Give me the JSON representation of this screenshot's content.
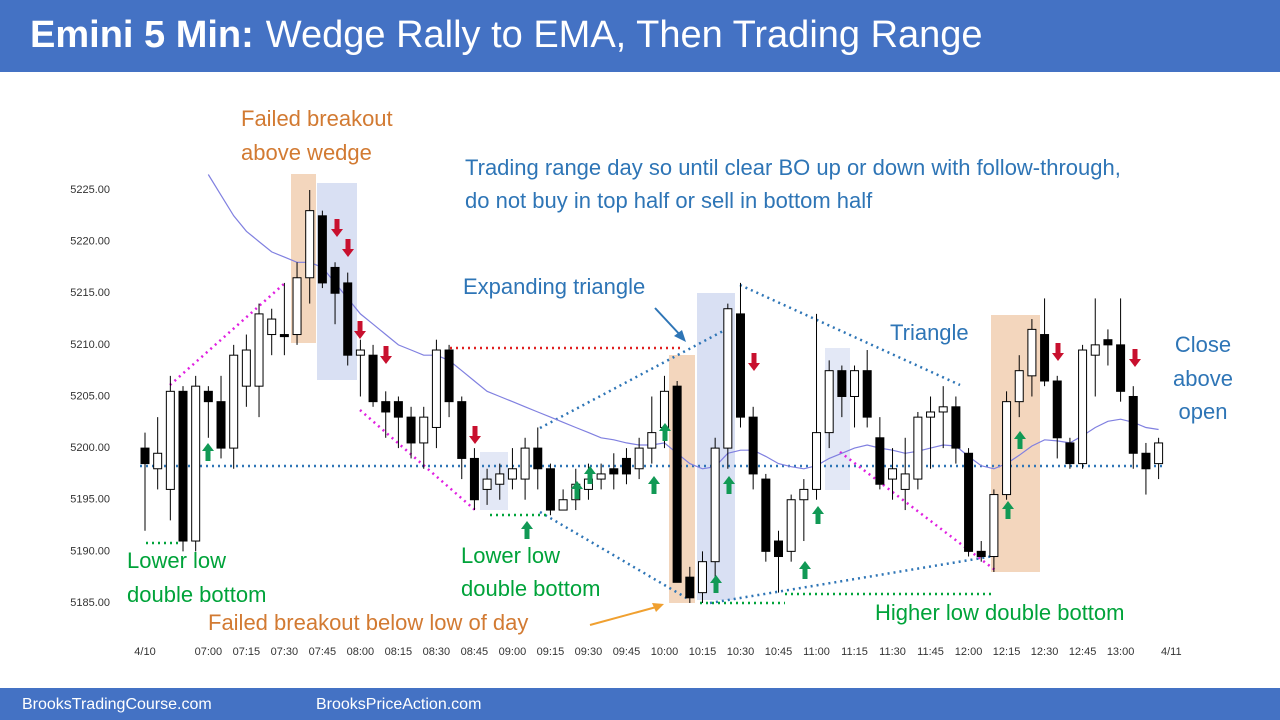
{
  "chart_data": {
    "type": "candlestick",
    "title_lead": "Emini 5 Min:",
    "title": "Wedge Rally to EMA, Then Trading Range",
    "categories": [
      "4/10",
      null,
      null,
      null,
      null,
      "07:00",
      null,
      null,
      "07:15",
      null,
      null,
      "07:30",
      null,
      null,
      "07:45",
      null,
      null,
      "08:00",
      null,
      null,
      "08:15",
      null,
      null,
      "08:30",
      null,
      null,
      "08:45",
      null,
      null,
      "09:00",
      null,
      null,
      "09:15",
      null,
      null,
      "09:30",
      null,
      null,
      "09:45",
      null,
      null,
      "10:00",
      null,
      null,
      "10:15",
      null,
      null,
      "10:30",
      null,
      null,
      "10:45",
      null,
      null,
      "11:00",
      null,
      null,
      "11:15",
      null,
      null,
      "11:30",
      null,
      null,
      "11:45",
      null,
      null,
      "12:00",
      null,
      null,
      "12:15",
      null,
      null,
      "12:30",
      null,
      null,
      "12:45",
      null,
      null,
      "13:00",
      null,
      null,
      null,
      "4/11"
    ],
    "open": [
      5200,
      5198,
      5196,
      5205.5,
      5191,
      5205.5,
      5204.5,
      5200,
      5206,
      5206,
      5211,
      5211,
      5211,
      5216.5,
      5222.5,
      5217.5,
      5216,
      5209,
      5209,
      5204.5,
      5204.5,
      5203,
      5200.5,
      5202,
      5209.5,
      5204.5,
      5199,
      5196,
      5196.5,
      5197,
      5197,
      5200,
      5198,
      5194,
      5195,
      5196,
      5197,
      5198,
      5199,
      5198,
      5200,
      5202,
      5206,
      5187.5,
      5186,
      5189,
      5200,
      5213,
      5203,
      5197,
      5191,
      5190,
      5195,
      5196,
      5201.5,
      5207.5,
      5205,
      5207.5,
      5201,
      5197,
      5196,
      5197,
      5203,
      5203.5,
      5204,
      5199.5,
      5190,
      5189.5,
      5195.5,
      5204.5,
      5207,
      5211,
      5206.5,
      5200.5,
      5198.5,
      5209,
      5210.5,
      5210,
      5205,
      5199.5,
      5198.5,
      null
    ],
    "high": [
      5201.5,
      5203,
      5207,
      5206,
      5207,
      5206,
      5207,
      5210,
      5211,
      5214,
      5213.5,
      5216,
      5218,
      5225,
      5223,
      5218,
      5217,
      5210.5,
      5210,
      5205.5,
      5205,
      5204,
      5204,
      5210.5,
      5210,
      5205,
      5200,
      5198,
      5198.5,
      5200,
      5201,
      5202,
      5198.5,
      5196,
      5198,
      5198.5,
      5198.5,
      5199.5,
      5200,
      5201,
      5205,
      5207,
      5206.5,
      5188.5,
      5190,
      5201,
      5214,
      5216,
      5204,
      5197.5,
      5192,
      5195.5,
      5197,
      5213,
      5208.5,
      5208,
      5208,
      5209.5,
      5203,
      5200,
      5201,
      5203.5,
      5205,
      5206,
      5205,
      5200,
      5191,
      5196,
      5205.5,
      5209,
      5212.5,
      5214.5,
      5207,
      5201,
      5210,
      5214.5,
      5211.5,
      5214.5,
      5206,
      5200.5,
      5201,
      null
    ],
    "low": [
      5192,
      5196,
      5193,
      5190,
      5190,
      5201,
      5199,
      5198,
      5204,
      5203,
      5209,
      5209,
      5210,
      5214,
      5215.5,
      5212,
      5208,
      5205,
      5204,
      5201,
      5200,
      5199,
      5198,
      5200,
      5203,
      5197,
      5194,
      5194.5,
      5195,
      5196,
      5195,
      5196,
      5193.5,
      5194,
      5194,
      5195,
      5196,
      5196,
      5196.5,
      5197,
      5198.5,
      5200,
      5187,
      5185,
      5185,
      5187,
      5198,
      5202,
      5196,
      5189,
      5186,
      5189,
      5191,
      5195,
      5200,
      5203,
      5202,
      5202,
      5196,
      5195,
      5194,
      5196,
      5198,
      5200,
      5198.5,
      5189.5,
      5189,
      5188,
      5195,
      5203,
      5205,
      5206,
      5199,
      5198,
      5198,
      5205,
      5208,
      5204.5,
      5198,
      5195.5,
      5197,
      null
    ],
    "close": [
      5198.5,
      5199.5,
      5205.5,
      5191,
      5206,
      5204.5,
      5200,
      5209,
      5209.5,
      5213,
      5212.5,
      5210.8,
      5216.5,
      5223,
      5216,
      5215,
      5209,
      5209.5,
      5204.5,
      5203.5,
      5203,
      5200.5,
      5203,
      5209.5,
      5204.5,
      5199,
      5195,
      5197,
      5197.5,
      5198,
      5200,
      5198,
      5194,
      5195,
      5196.5,
      5197,
      5197.5,
      5197.5,
      5197.5,
      5200,
      5201.5,
      5205.5,
      5187,
      5185.5,
      5189,
      5200,
      5213.5,
      5203,
      5197.5,
      5190,
      5189.5,
      5195,
      5196,
      5201.5,
      5207.5,
      5205,
      5207.5,
      5203,
      5196.5,
      5198,
      5197.5,
      5203,
      5203.5,
      5204,
      5200,
      5190,
      5189.5,
      5195.5,
      5204.5,
      5207.5,
      5211.5,
      5206.5,
      5201,
      5198.5,
      5209.5,
      5210,
      5210,
      5205.5,
      5199.5,
      5198,
      5200.5,
      null
    ],
    "up_color": "#ffffff",
    "down_color": "#000000",
    "ema": {
      "color": "#8080e0",
      "values": [
        null,
        null,
        null,
        null,
        null,
        5226.5,
        5224.5,
        5222.5,
        5221,
        5220,
        5219,
        5218.5,
        5218,
        5218,
        5217.5,
        5216,
        5214.5,
        5213,
        5212,
        5211,
        5210,
        5209.5,
        5209,
        5209,
        5208.5,
        5207.5,
        5206.5,
        5205.5,
        5205,
        5204.5,
        5204,
        5203.5,
        5203,
        5202.5,
        5202,
        5201.5,
        5201,
        5200.8,
        5200.5,
        5200.3,
        5200.3,
        5200.5,
        5199.5,
        5198.5,
        5198,
        5198.2,
        5199.5,
        5199.8,
        5199.8,
        5199.2,
        5198.5,
        5198.2,
        5198,
        5198.3,
        5199,
        5199.5,
        5200,
        5200.3,
        5200,
        5199.8,
        5199.5,
        5199.7,
        5200,
        5200.3,
        5200.2,
        5199.2,
        5198.3,
        5198,
        5198.5,
        5199.3,
        5200.2,
        5200.8,
        5200.7,
        5200.5,
        5201.2,
        5202,
        5202.6,
        5202.8,
        5202.5,
        5202,
        5201.8,
        null
      ]
    },
    "ylim": [
      5184,
      5227
    ],
    "yticks": [
      {
        "value": 5185,
        "label": "5185.00"
      },
      {
        "value": 5190,
        "label": "5190.00"
      },
      {
        "value": 5195,
        "label": "5195.00"
      },
      {
        "value": 5200,
        "label": "5200.00"
      },
      {
        "value": 5205,
        "label": "5205.00"
      },
      {
        "value": 5210,
        "label": "5210.00"
      },
      {
        "value": 5215,
        "label": "5215.00"
      },
      {
        "value": 5220,
        "label": "5220.00"
      },
      {
        "value": 5225,
        "label": "5225.00"
      }
    ],
    "annotations": [
      {
        "lines": [
          "Failed breakout",
          "above wedge"
        ]
      },
      {
        "lines": [
          "Trading range day so until clear BO up or down with follow-through,",
          "do not buy in top half or sell in bottom half"
        ]
      },
      {
        "lines": [
          "Expanding triangle"
        ]
      },
      {
        "lines": [
          "Triangle"
        ]
      },
      {
        "lines": [
          "Close",
          "above",
          "open"
        ]
      },
      {
        "lines": [
          "Lower low",
          "double bottom"
        ]
      },
      {
        "lines": [
          "Lower low",
          "double bottom"
        ]
      },
      {
        "lines": [
          "Failed breakout below low of day"
        ]
      },
      {
        "lines": [
          "Higher low double bottom"
        ]
      }
    ]
  },
  "footer": {
    "left": "BrooksTradingCourse.com",
    "right": "BrooksPriceAction.com"
  }
}
